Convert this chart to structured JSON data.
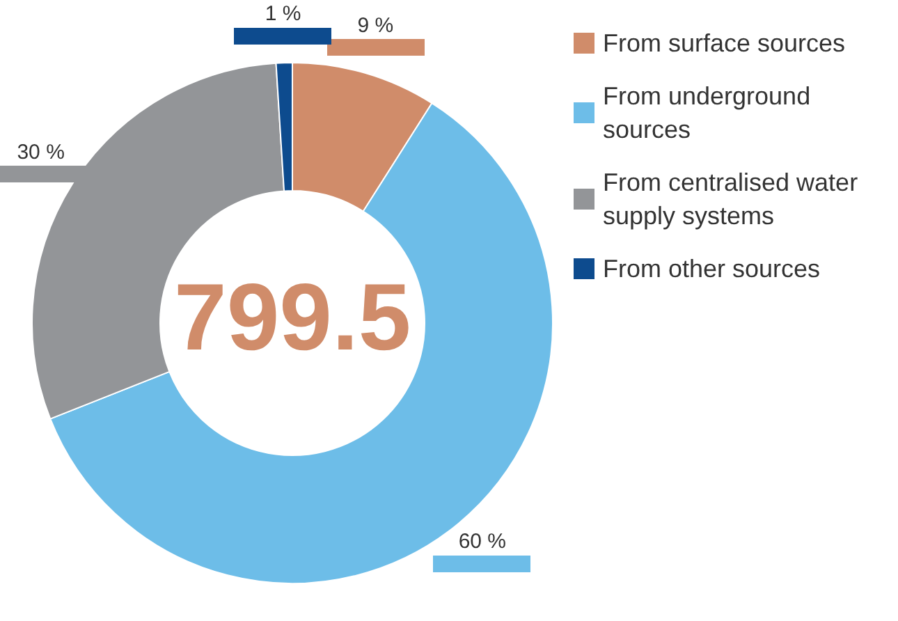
{
  "chart_data": {
    "type": "donut",
    "categories": [
      "From surface sources",
      "From underground sources",
      "From centralised water supply systems",
      "From other sources"
    ],
    "values": [
      9,
      60,
      30,
      1
    ],
    "value_labels": [
      "9 %",
      "60 %",
      "30 %",
      "1 %"
    ],
    "colors": [
      "#d08c6a",
      "#6dbde8",
      "#939598",
      "#0d4b8e"
    ],
    "legend": "top right",
    "annotations": [
      "799.5"
    ]
  }
}
